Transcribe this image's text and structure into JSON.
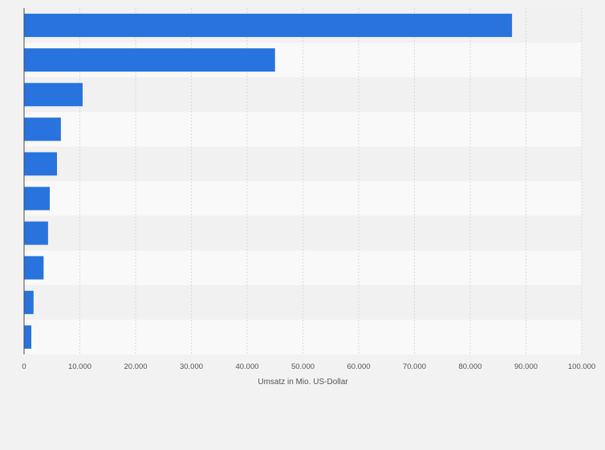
{
  "chart_data": {
    "type": "bar",
    "orientation": "horizontal",
    "categories": [
      "",
      "",
      "",
      "",
      "",
      "",
      "",
      "",
      "",
      ""
    ],
    "values": [
      87500,
      45000,
      10500,
      6600,
      5900,
      4600,
      4300,
      3500,
      1700,
      1300
    ],
    "title": "",
    "xlabel": "Umsatz in Mio. US-Dollar",
    "ylabel": "",
    "xlim": [
      0,
      100000
    ],
    "xticks": [
      0,
      10000,
      20000,
      30000,
      40000,
      50000,
      60000,
      70000,
      80000,
      90000,
      100000
    ],
    "xtick_labels": [
      "0",
      "10.000",
      "20.000",
      "30.000",
      "40.000",
      "50.000",
      "60.000",
      "70.000",
      "80.000",
      "90.000",
      "100.000"
    ],
    "grid": true,
    "legend": "none"
  },
  "colors": {
    "bar": "#2873dd",
    "page_background": "#f2f2f2",
    "band_dark": "#f1f1f1",
    "band_light": "#f9f9f9",
    "gridline": "#d9d9d9",
    "axis_line": "#4a4a4a",
    "text": "#555555"
  }
}
